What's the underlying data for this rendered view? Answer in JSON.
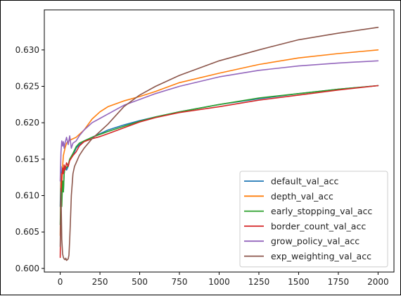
{
  "chart_data": {
    "type": "line",
    "title": "",
    "xlabel": "",
    "ylabel": "",
    "xlim": [
      -100,
      2100
    ],
    "ylim": [
      0.5995,
      0.6355
    ],
    "xticks": [
      0,
      250,
      500,
      750,
      1000,
      1250,
      1500,
      1750,
      2000
    ],
    "xtick_labels": [
      "0",
      "250",
      "500",
      "750",
      "1000",
      "1250",
      "1500",
      "1750",
      "2000"
    ],
    "yticks": [
      0.6,
      0.605,
      0.61,
      0.615,
      0.62,
      0.625,
      0.63
    ],
    "ytick_labels": [
      "0.600",
      "0.605",
      "0.610",
      "0.615",
      "0.620",
      "0.625",
      "0.630"
    ],
    "grid": false,
    "legend_position": "lower-right",
    "series": [
      {
        "name": "default_val_acc",
        "color": "#1f77b4",
        "x": [
          0,
          5,
          10,
          15,
          20,
          25,
          30,
          40,
          50,
          60,
          80,
          100,
          120,
          150,
          200,
          250,
          300,
          400,
          500,
          600,
          750,
          1000,
          1250,
          1500,
          1750,
          2000
        ],
        "y": [
          0.6085,
          0.614,
          0.6095,
          0.612,
          0.6105,
          0.613,
          0.614,
          0.6135,
          0.614,
          0.615,
          0.6155,
          0.6165,
          0.617,
          0.6175,
          0.618,
          0.6185,
          0.619,
          0.6197,
          0.6203,
          0.6208,
          0.6215,
          0.6225,
          0.6233,
          0.624,
          0.6246,
          0.6251
        ]
      },
      {
        "name": "depth_val_acc",
        "color": "#ff7f0e",
        "x": [
          0,
          5,
          10,
          15,
          20,
          30,
          40,
          60,
          80,
          100,
          150,
          200,
          250,
          300,
          400,
          500,
          600,
          750,
          1000,
          1250,
          1500,
          1750,
          2000
        ],
        "y": [
          0.6045,
          0.613,
          0.611,
          0.614,
          0.6155,
          0.6165,
          0.6172,
          0.6176,
          0.6178,
          0.618,
          0.619,
          0.6205,
          0.6215,
          0.6222,
          0.623,
          0.6236,
          0.6243,
          0.6255,
          0.6268,
          0.628,
          0.6289,
          0.6295,
          0.63
        ]
      },
      {
        "name": "early_stopping_val_acc",
        "color": "#2ca02c",
        "x": [
          0,
          5,
          10,
          15,
          20,
          25,
          30,
          40,
          50,
          60,
          80,
          100,
          120,
          150,
          200,
          250,
          300,
          400,
          500,
          600,
          750,
          1000,
          1250,
          1500,
          1750,
          2000
        ],
        "y": [
          0.606,
          0.611,
          0.6085,
          0.612,
          0.6105,
          0.613,
          0.614,
          0.6138,
          0.6142,
          0.615,
          0.6158,
          0.6167,
          0.6172,
          0.6175,
          0.618,
          0.6184,
          0.6188,
          0.6195,
          0.6202,
          0.6208,
          0.6215,
          0.6225,
          0.6234,
          0.624,
          0.6246,
          0.6251
        ]
      },
      {
        "name": "border_count_val_acc",
        "color": "#d62728",
        "x": [
          0,
          5,
          10,
          15,
          20,
          25,
          30,
          40,
          50,
          60,
          80,
          100,
          120,
          150,
          200,
          250,
          300,
          400,
          500,
          600,
          750,
          1000,
          1250,
          1500,
          1750,
          2000
        ],
        "y": [
          0.6015,
          0.61,
          0.6125,
          0.6138,
          0.613,
          0.6142,
          0.6135,
          0.6145,
          0.614,
          0.6148,
          0.6155,
          0.616,
          0.6168,
          0.6174,
          0.6178,
          0.6181,
          0.6185,
          0.6193,
          0.6201,
          0.6207,
          0.6214,
          0.6222,
          0.6231,
          0.6238,
          0.6245,
          0.6251
        ]
      },
      {
        "name": "grow_policy_val_acc",
        "color": "#9467bd",
        "x": [
          0,
          5,
          10,
          15,
          20,
          25,
          30,
          40,
          50,
          60,
          70,
          80,
          100,
          120,
          150,
          200,
          250,
          300,
          400,
          500,
          600,
          750,
          1000,
          1250,
          1500,
          1750,
          2000
        ],
        "y": [
          0.612,
          0.616,
          0.6175,
          0.6168,
          0.6174,
          0.6165,
          0.6172,
          0.618,
          0.617,
          0.6182,
          0.6165,
          0.6172,
          0.6175,
          0.6182,
          0.619,
          0.62,
          0.6206,
          0.6212,
          0.6224,
          0.6232,
          0.624,
          0.625,
          0.6263,
          0.6272,
          0.6278,
          0.6282,
          0.6285
        ]
      },
      {
        "name": "exp_weighting_val_acc",
        "color": "#8c564b",
        "x": [
          0,
          5,
          10,
          15,
          20,
          25,
          30,
          35,
          40,
          45,
          50,
          55,
          60,
          65,
          70,
          80,
          90,
          100,
          120,
          150,
          200,
          250,
          300,
          400,
          500,
          600,
          750,
          1000,
          1250,
          1500,
          1750,
          2000
        ],
        "y": [
          0.603,
          0.6105,
          0.604,
          0.602,
          0.6015,
          0.6013,
          0.6012,
          0.6014,
          0.6011,
          0.6012,
          0.6013,
          0.6018,
          0.604,
          0.607,
          0.61,
          0.613,
          0.614,
          0.6145,
          0.6155,
          0.6165,
          0.6178,
          0.6188,
          0.6198,
          0.6222,
          0.6238,
          0.625,
          0.6265,
          0.6285,
          0.63,
          0.6314,
          0.6323,
          0.6331
        ]
      }
    ]
  }
}
